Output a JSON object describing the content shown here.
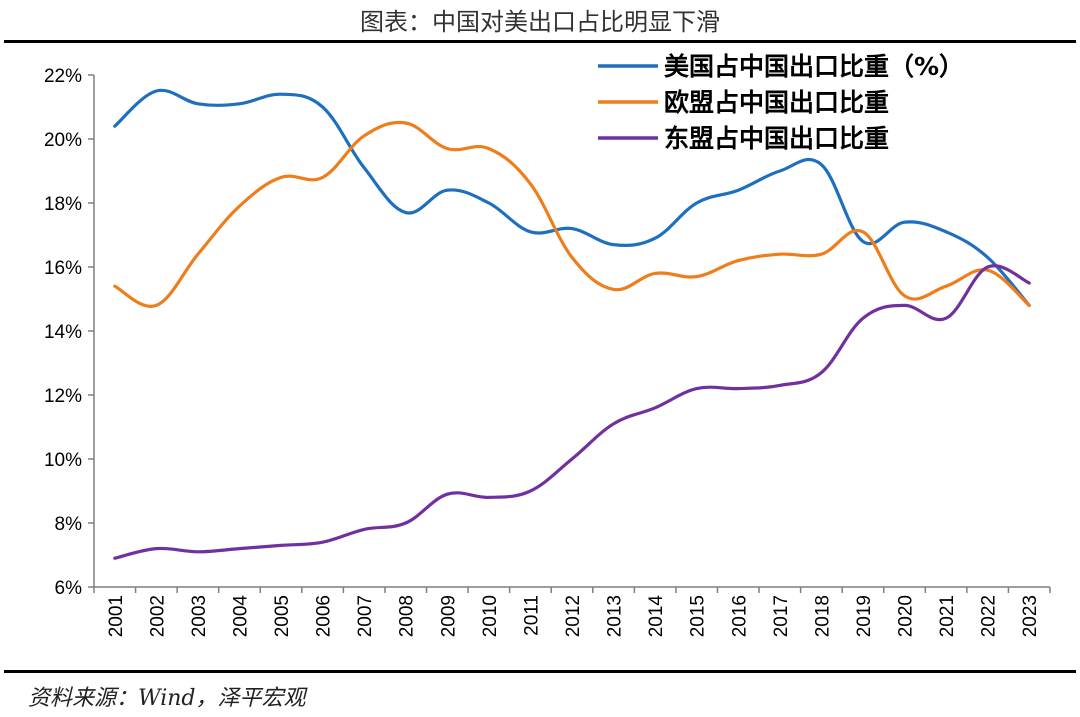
{
  "figure": {
    "title": "图表：中国对美出口占比明显下滑",
    "source": "资料来源：Wind，泽平宏观"
  },
  "chart_data": {
    "type": "line",
    "title": "图表：中国对美出口占比明显下滑",
    "x": [
      "2001",
      "2002",
      "2003",
      "2004",
      "2005",
      "2006",
      "2007",
      "2008",
      "2009",
      "2010",
      "2011",
      "2012",
      "2013",
      "2014",
      "2015",
      "2016",
      "2017",
      "2018",
      "2019",
      "2020",
      "2021",
      "2022",
      "2023"
    ],
    "y_tick_labels": [
      "6%",
      "8%",
      "10%",
      "12%",
      "14%",
      "16%",
      "18%",
      "20%",
      "22%"
    ],
    "ylim": [
      6,
      22
    ],
    "y_unit": "%",
    "grid": false,
    "legend_position": "top-right",
    "series": [
      {
        "name": "美国占中国出口比重（%）",
        "color": "#1f6fbf",
        "values": [
          20.4,
          21.5,
          21.1,
          21.1,
          21.4,
          21.0,
          19.1,
          17.7,
          18.4,
          18.0,
          17.1,
          17.2,
          16.7,
          16.9,
          18.0,
          18.4,
          19.0,
          19.2,
          16.8,
          17.4,
          17.1,
          16.3,
          14.8
        ]
      },
      {
        "name": "欧盟占中国出口比重",
        "color": "#ee7d1b",
        "values": [
          15.4,
          14.8,
          16.4,
          17.9,
          18.8,
          18.8,
          20.1,
          20.5,
          19.7,
          19.7,
          18.6,
          16.3,
          15.3,
          15.8,
          15.7,
          16.2,
          16.4,
          16.4,
          17.1,
          15.1,
          15.4,
          15.9,
          14.8
        ]
      },
      {
        "name": "东盟占中国出口比重",
        "color": "#7030a0",
        "values": [
          6.9,
          7.2,
          7.1,
          7.2,
          7.3,
          7.4,
          7.8,
          8.0,
          8.9,
          8.8,
          9.0,
          10.0,
          11.1,
          11.6,
          12.2,
          12.2,
          12.3,
          12.7,
          14.4,
          14.8,
          14.4,
          16.0,
          15.5
        ]
      }
    ]
  }
}
